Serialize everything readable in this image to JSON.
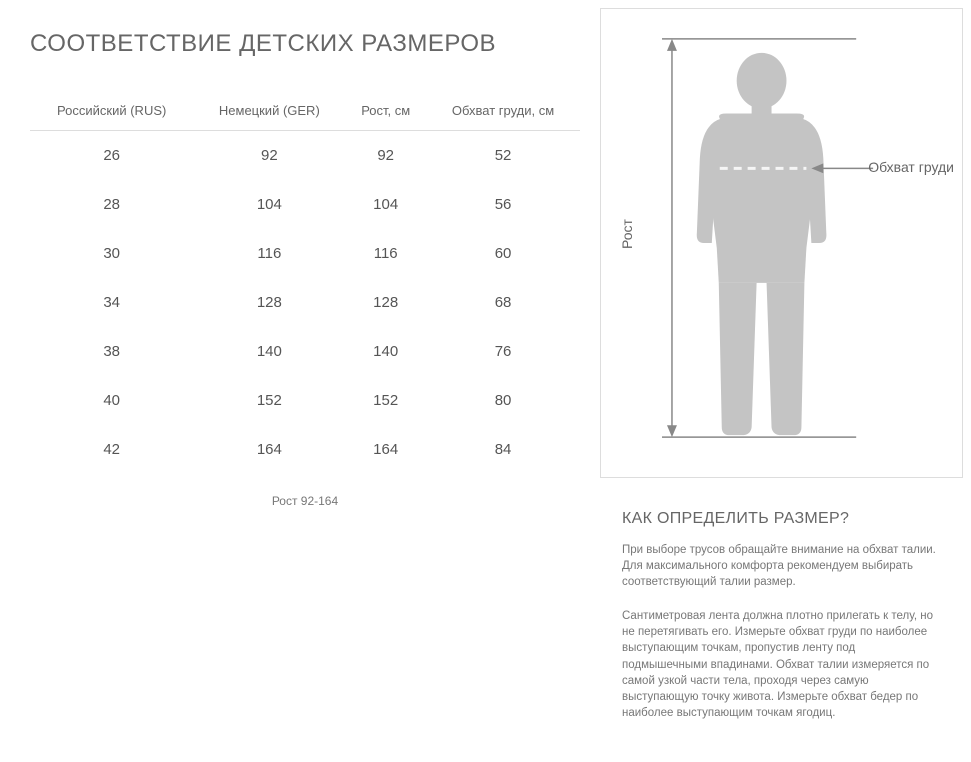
{
  "title": "СООТВЕТСТВИЕ ДЕТСКИХ РАЗМЕРОВ",
  "table": {
    "columns": [
      "Российский (RUS)",
      "Немецкий (GER)",
      "Рост, см",
      "Обхват груди, см"
    ],
    "rows": [
      [
        "26",
        "92",
        "92",
        "52"
      ],
      [
        "28",
        "104",
        "104",
        "56"
      ],
      [
        "30",
        "116",
        "116",
        "60"
      ],
      [
        "34",
        "128",
        "128",
        "68"
      ],
      [
        "38",
        "140",
        "140",
        "76"
      ],
      [
        "40",
        "152",
        "152",
        "80"
      ],
      [
        "42",
        "164",
        "164",
        "84"
      ]
    ],
    "footnote": "Рост 92-164"
  },
  "diagram": {
    "silhouette_color": "#c4c4c4",
    "line_color": "#888888",
    "dash_color": "#eeeeee",
    "chest_label": "Обхват груди",
    "height_label": "Рост"
  },
  "info": {
    "title": "КАК ОПРЕДЕЛИТЬ РАЗМЕР?",
    "para1": "При выборе трусов обращайте внимание на обхват талии. Для максимального комфорта рекомендуем выбирать соответствующий талии размер.",
    "para2": "Сантиметровая лента должна плотно прилегать к телу, но не перетягивать его. Измерьте обхват груди по наиболее выступающим точкам, пропустив ленту под подмышечными впадинами. Обхват талии измеряется по самой узкой части тела, проходя через самую выступающую точку живота. Измерьте обхват бедер по наиболее выступающим точкам ягодиц."
  },
  "colors": {
    "text_primary": "#555555",
    "text_secondary": "#666666",
    "text_muted": "#777777",
    "border": "#dddddd",
    "background": "#ffffff"
  }
}
